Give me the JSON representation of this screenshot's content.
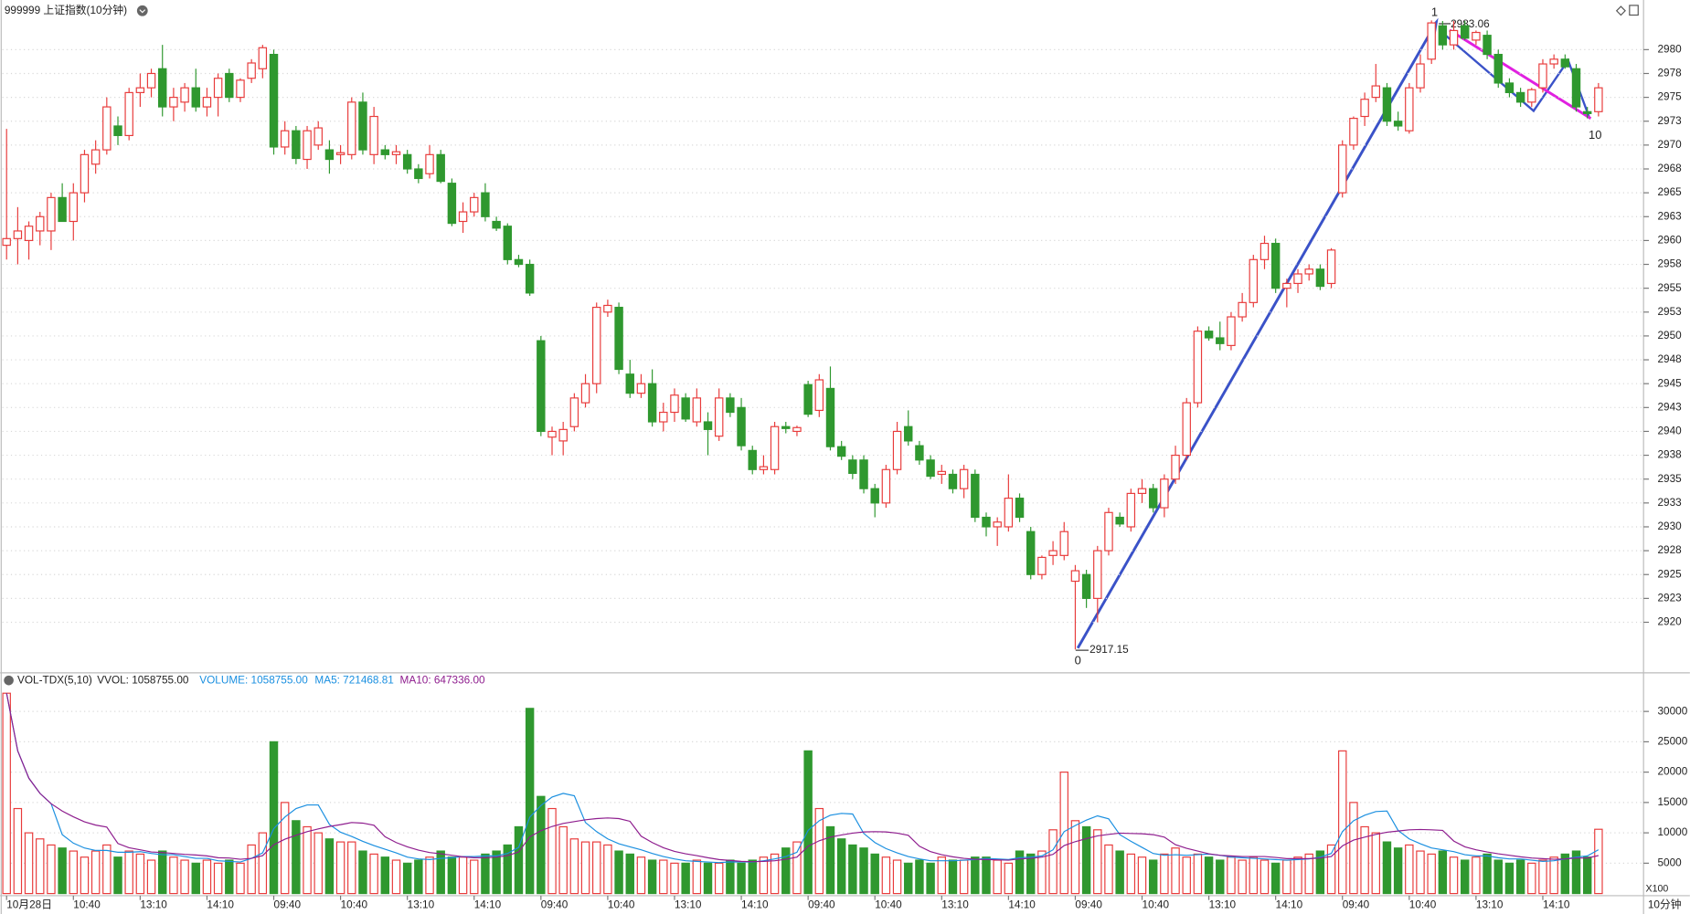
{
  "chart_data": [
    {
      "type": "candlestick",
      "title": "999999 上证指数(10分钟)",
      "period_label": "10分钟",
      "categories": [
        "10月28日",
        null,
        null,
        null,
        null,
        null,
        "10:40",
        null,
        null,
        null,
        null,
        null,
        "13:10",
        null,
        null,
        null,
        null,
        null,
        "14:10",
        null,
        null,
        null,
        null,
        null,
        "09:40",
        null,
        null,
        null,
        null,
        null,
        "10:40",
        null,
        null,
        null,
        null,
        null,
        "13:10",
        null,
        null,
        null,
        null,
        null,
        "14:10",
        null,
        null,
        null,
        null,
        null,
        "09:40",
        null,
        null,
        null,
        null,
        null,
        "10:40",
        null,
        null,
        null,
        null,
        null,
        "13:10",
        null,
        null,
        null,
        null,
        null,
        "14:10",
        null,
        null,
        null,
        null,
        null,
        "09:40",
        null,
        null,
        null,
        null,
        null,
        "10:40",
        null,
        null,
        null,
        null,
        null,
        "13:10",
        null,
        null,
        null,
        null,
        null,
        "14:10",
        null,
        null,
        null,
        null,
        null,
        "09:40",
        null,
        null,
        null,
        null,
        null,
        "10:40",
        null,
        null,
        null,
        null,
        null,
        "13:10",
        null,
        null,
        null,
        null,
        null,
        "14:10",
        null,
        null,
        null,
        null,
        null,
        "09:40",
        null,
        null,
        null,
        null,
        null,
        "10:40",
        null,
        null,
        null,
        null,
        null,
        "13:10",
        null,
        null,
        null,
        null,
        null,
        "14:10",
        null,
        null,
        null,
        null,
        null
      ],
      "open": [
        2959.5,
        2960.2,
        2960,
        2961,
        2961,
        2964.5,
        2962,
        2965,
        2968,
        2969.5,
        2972,
        2971,
        2975.5,
        2976,
        2978,
        2974,
        2974.5,
        2976,
        2974,
        2975,
        2977.5,
        2975,
        2977,
        2978,
        2979.5,
        2969.8,
        2971.5,
        2968.5,
        2970,
        2969.5,
        2969,
        2969,
        2974.5,
        2969,
        2969.5,
        2969,
        2969,
        2967.5,
        2967,
        2969,
        2966,
        2962,
        2963,
        2965,
        2962,
        2961.5,
        2958,
        2957.5,
        2949.5,
        2939.4,
        2939,
        2940.5,
        2943,
        2945,
        2952.5,
        2953,
        2946,
        2944,
        2945,
        2941,
        2942,
        2943.5,
        2941,
        2941,
        2939.5,
        2943.5,
        2942.5,
        2938,
        2936,
        2936,
        2940.5,
        2940,
        2944.9,
        2942.2,
        2944.5,
        2938.4,
        2937,
        2937,
        2934,
        2932.5,
        2936,
        2940.5,
        2938.5,
        2937,
        2935.5,
        2935.5,
        2934,
        2935.5,
        2931,
        2930,
        2930,
        2933,
        2929.5,
        2925,
        2927,
        2927,
        2924.3,
        2925,
        2922.5,
        2927.5,
        2931,
        2930,
        2933.5,
        2934,
        2932,
        2935,
        2937.5,
        2943,
        2950.5,
        2949.8,
        2949,
        2952,
        2953.5,
        2958,
        2959.7,
        2955,
        2955.5,
        2956.5,
        2957,
        2955.5,
        2965,
        2970,
        2973,
        2975,
        2976,
        2972.5,
        2971.5,
        2976,
        2979,
        2982.5,
        2980.5,
        2982.5,
        2981,
        2981.5,
        2979.5,
        2976.5,
        2975.5,
        2974.5,
        2976,
        2978.5,
        2979,
        2978,
        2973.5,
        2973.5
      ],
      "high": [
        2971.7,
        2963.5,
        2962,
        2963,
        2965,
        2966,
        2966,
        2969.5,
        2970.5,
        2975,
        2973,
        2976,
        2977.5,
        2978,
        2980.5,
        2976,
        2976.5,
        2978,
        2976,
        2977.5,
        2978,
        2977,
        2979,
        2980.5,
        2980,
        2972.5,
        2972,
        2972,
        2972.5,
        2970.5,
        2970,
        2975,
        2975.5,
        2974,
        2970,
        2970,
        2969.5,
        2968,
        2970,
        2969.5,
        2966.5,
        2964,
        2965,
        2966,
        2962.5,
        2961.8,
        2958.5,
        2958,
        2950,
        2940.5,
        2941,
        2944,
        2946,
        2953.5,
        2953.8,
        2953.5,
        2947.5,
        2946,
        2946.5,
        2943,
        2944.5,
        2944,
        2944.5,
        2942,
        2944.5,
        2944,
        2943.5,
        2938.5,
        2937.5,
        2941,
        2941,
        2940.6,
        2945.3,
        2946,
        2946.8,
        2939,
        2937.5,
        2937.5,
        2934.5,
        2936.5,
        2941,
        2942.2,
        2939,
        2937.5,
        2936.5,
        2936,
        2936.5,
        2936,
        2931.5,
        2931,
        2935.5,
        2933.5,
        2930,
        2927,
        2928.5,
        2930.5,
        2926,
        2925.5,
        2928,
        2932,
        2931.5,
        2934,
        2935,
        2934.5,
        2935.5,
        2938.5,
        2943.5,
        2951,
        2951,
        2951.5,
        2952.5,
        2954.5,
        2958.5,
        2960.5,
        2960.2,
        2956,
        2957,
        2957.5,
        2957.5,
        2959.2,
        2970.5,
        2973,
        2975.5,
        2978.5,
        2976.5,
        2973.5,
        2976.5,
        2979.5,
        2983.06,
        2983,
        2983,
        2983,
        2982,
        2982,
        2980,
        2977,
        2976,
        2976,
        2979,
        2979.5,
        2979.5,
        2978.5,
        2974,
        2976.5
      ],
      "low": [
        2958,
        2957.5,
        2958,
        2959.5,
        2959,
        2962,
        2960,
        2964,
        2967,
        2969,
        2970,
        2970.5,
        2974,
        2975,
        2973,
        2972.5,
        2973.5,
        2973.5,
        2973,
        2973,
        2974.5,
        2974.5,
        2976.5,
        2977,
        2969,
        2969,
        2968,
        2967.5,
        2969.5,
        2967,
        2968,
        2968.5,
        2969,
        2968,
        2968.5,
        2968,
        2967,
        2966,
        2966.5,
        2966,
        2961.5,
        2960.8,
        2962.5,
        2962,
        2961,
        2957.5,
        2957.2,
        2954.2,
        2939.5,
        2937.5,
        2937.5,
        2940,
        2942.5,
        2944,
        2952,
        2946,
        2943.5,
        2943.5,
        2940.5,
        2940,
        2941,
        2941,
        2940.5,
        2937.5,
        2939,
        2941.5,
        2938,
        2935.5,
        2935.5,
        2935.5,
        2939.8,
        2939.5,
        2941.5,
        2941.5,
        2938,
        2937,
        2935,
        2933.5,
        2931,
        2932,
        2935.5,
        2938.5,
        2936.5,
        2935,
        2934.5,
        2933.5,
        2933,
        2930.5,
        2929,
        2928,
        2929.5,
        2930.5,
        2924.5,
        2924.5,
        2926,
        2926.5,
        2917.15,
        2921.5,
        2920,
        2927,
        2930,
        2929.5,
        2932.5,
        2931.5,
        2931,
        2934.5,
        2937,
        2942.5,
        2949.5,
        2948.5,
        2948.5,
        2951.5,
        2953,
        2957,
        2954.5,
        2953,
        2954.5,
        2955.8,
        2954.8,
        2955,
        2964.5,
        2969.5,
        2972,
        2974.5,
        2972,
        2971.5,
        2971.2,
        2975.5,
        2978.5,
        2980,
        2980,
        2981,
        2980.5,
        2979,
        2976,
        2975,
        2974,
        2974,
        2975.5,
        2978,
        2978,
        2973.5,
        2972.8,
        2973
      ],
      "close": [
        2960.2,
        2961,
        2961.5,
        2962.5,
        2964.5,
        2962,
        2965,
        2969,
        2969.5,
        2974,
        2971,
        2975.5,
        2976,
        2977.5,
        2974,
        2975,
        2976,
        2974,
        2975,
        2977,
        2975,
        2976.8,
        2978.6,
        2980.2,
        2969.8,
        2971.5,
        2968.6,
        2971.5,
        2971.8,
        2968.5,
        2969.2,
        2974.5,
        2969.5,
        2973,
        2969,
        2969.3,
        2967.5,
        2966.5,
        2969,
        2966.2,
        2961.8,
        2963,
        2964.5,
        2962.5,
        2961.3,
        2958,
        2957.5,
        2954.5,
        2940,
        2940,
        2940.2,
        2943.5,
        2945,
        2953,
        2953.2,
        2946.5,
        2944,
        2945,
        2941,
        2942,
        2943.8,
        2941.3,
        2943.5,
        2940.2,
        2943.5,
        2942,
        2938.5,
        2936,
        2936.3,
        2940.5,
        2940.3,
        2940.4,
        2941.8,
        2945.4,
        2938.4,
        2937.4,
        2935.6,
        2934,
        2932.5,
        2936,
        2940,
        2939,
        2937,
        2935.3,
        2935.8,
        2934,
        2936,
        2931,
        2930,
        2930.5,
        2933,
        2931,
        2925,
        2926.8,
        2927.5,
        2929.5,
        2925.4,
        2922.5,
        2927.5,
        2931.5,
        2930.3,
        2933.5,
        2934,
        2932,
        2935,
        2937.5,
        2943,
        2950.5,
        2949.8,
        2949.2,
        2952,
        2953.5,
        2958,
        2959.7,
        2955,
        2955.5,
        2956.5,
        2957,
        2955.2,
        2959,
        2970,
        2972.8,
        2974.8,
        2976.2,
        2972.5,
        2972,
        2976,
        2978.5,
        2982.8,
        2980.5,
        2982,
        2981.2,
        2981.8,
        2979.5,
        2976.5,
        2975.5,
        2974.5,
        2975.8,
        2978.5,
        2979,
        2978.2,
        2974,
        2973.3,
        2976
      ],
      "up_color": "#e83b3b",
      "down_color": "#2f982f",
      "ylim": [
        2914.7,
        2985.2
      ],
      "yticks": [
        2920,
        {
          "value": 2922.5,
          "label": "2923"
        },
        2925,
        {
          "value": 2927.5,
          "label": "2928"
        },
        2930,
        {
          "value": 2932.5,
          "label": "2933"
        },
        2935,
        {
          "value": 2937.5,
          "label": "2938"
        },
        2940,
        {
          "value": 2942.5,
          "label": "2943"
        },
        2945,
        {
          "value": 2947.5,
          "label": "2948"
        },
        2950,
        {
          "value": 2952.5,
          "label": "2953"
        },
        2955,
        {
          "value": 2957.5,
          "label": "2958"
        },
        2960,
        {
          "value": 2962.5,
          "label": "2963"
        },
        2965,
        {
          "value": 2967.5,
          "label": "2968"
        },
        2970,
        {
          "value": 2972.5,
          "label": "2973"
        },
        2975,
        {
          "value": 2977.5,
          "label": "2978"
        },
        2980
      ],
      "grid": true,
      "annotations": [
        "0",
        "1",
        "10",
        "2983.06",
        "2917.15"
      ]
    },
    {
      "type": "bar",
      "title": "VOL-TDX(5,10)",
      "legend_texts": [
        "VVOL: 1058755.00",
        "VOLUME: 1058755.00",
        "MA5: 721468.81",
        "MA10: 647336.00"
      ],
      "unit_label": "X100",
      "values": [
        33000,
        14000,
        10000,
        9000,
        8000,
        7500,
        7000,
        6000,
        7000,
        8000,
        6000,
        7000,
        6500,
        5500,
        7000,
        6000,
        5500,
        5000,
        5500,
        5000,
        5500,
        5000,
        8000,
        10000,
        25000,
        15000,
        12000,
        11000,
        10000,
        9000,
        8500,
        8500,
        7000,
        6500,
        6000,
        5500,
        5000,
        5500,
        6000,
        7000,
        6000,
        6000,
        5500,
        6500,
        7000,
        8000,
        11000,
        30500,
        16000,
        14000,
        11000,
        9000,
        8500,
        8500,
        8000,
        7000,
        6500,
        6000,
        5500,
        5500,
        5000,
        5000,
        5500,
        5000,
        5000,
        5500,
        5000,
        5500,
        6000,
        6500,
        7500,
        8500,
        23500,
        14000,
        11000,
        9000,
        8000,
        7500,
        6500,
        6000,
        5500,
        5000,
        5500,
        5000,
        6000,
        5500,
        5500,
        6000,
        6000,
        5500,
        5000,
        7000,
        6500,
        7000,
        10500,
        20000,
        12000,
        11000,
        10500,
        8000,
        7000,
        6500,
        6000,
        5500,
        6500,
        7500,
        6000,
        6500,
        6000,
        5500,
        6000,
        5500,
        6000,
        5500,
        5000,
        5500,
        6000,
        6500,
        7000,
        8000,
        23500,
        15000,
        11000,
        10000,
        8500,
        7500,
        8000,
        7000,
        6500,
        7000,
        6000,
        5500,
        6000,
        6500,
        5500,
        5000,
        5500,
        5000,
        5500,
        6000,
        6500,
        7000,
        6000,
        10587.55
      ],
      "ma5_color": "#1a8fe0",
      "ma10_color": "#8e1d8e",
      "ylim": [
        0,
        36000
      ],
      "yticks": [
        5000,
        10000,
        15000,
        20000,
        25000,
        30000
      ],
      "grid": true
    }
  ]
}
